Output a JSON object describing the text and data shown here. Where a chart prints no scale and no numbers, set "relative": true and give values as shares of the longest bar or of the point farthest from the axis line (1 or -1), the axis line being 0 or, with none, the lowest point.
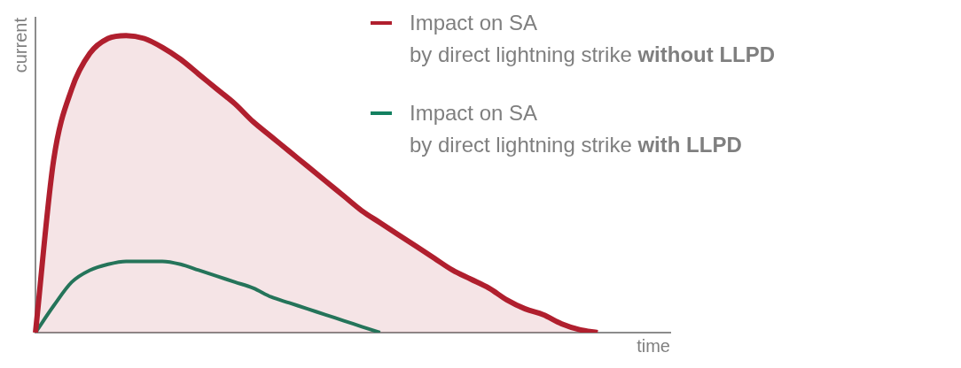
{
  "chart_data": {
    "type": "area",
    "relative": true,
    "xlabel": "time",
    "ylabel": "current",
    "legend": "top right",
    "categories": [
      null,
      null,
      null,
      null,
      null,
      null,
      null,
      null,
      null,
      null,
      null,
      null,
      null,
      null,
      null,
      null,
      null,
      null,
      null,
      null,
      null,
      null,
      null,
      null,
      null,
      null,
      null,
      null,
      null,
      null,
      null,
      null,
      null,
      null,
      null,
      null
    ],
    "series": [
      {
        "name": "Impact on SA by direct lightning strike without LLPD",
        "color": "#b01f2e",
        "values": [
          0,
          0.58,
          0.82,
          0.94,
          0.99,
          1,
          0.99,
          0.96,
          0.92,
          0.87,
          0.82,
          0.77,
          0.71,
          0.66,
          0.61,
          0.56,
          0.51,
          0.46,
          0.41,
          0.37,
          0.33,
          0.29,
          0.25,
          0.21,
          0.18,
          0.15,
          0.11,
          0.08,
          0.06,
          0.03,
          0.01,
          0,
          null,
          null,
          null,
          null
        ]
      },
      {
        "name": "Impact on SA by direct lightning strike with LLPD",
        "type": "line",
        "color": "#138060",
        "values": [
          0,
          0.09,
          0.17,
          0.21,
          0.23,
          0.24,
          0.24,
          0.24,
          0.23,
          0.21,
          0.19,
          0.17,
          0.15,
          0.12,
          0.1,
          0.08,
          0.06,
          0.04,
          0.02,
          0,
          null,
          null,
          null,
          null,
          null,
          null,
          null,
          null,
          null,
          null,
          null,
          null,
          null,
          null,
          null,
          null
        ]
      }
    ]
  }
}
